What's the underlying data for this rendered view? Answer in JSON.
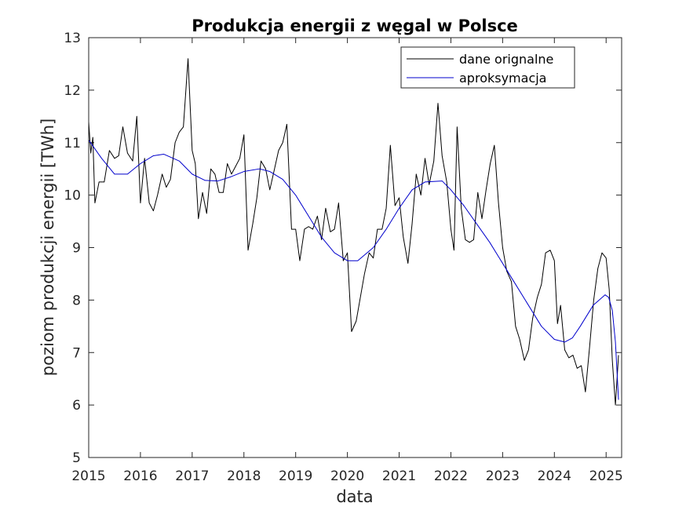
{
  "chart_data": {
    "type": "line",
    "title": "Produkcja energii z węgal w Polsce",
    "xlabel": "data",
    "ylabel": "poziom produkcji energii [TWh]",
    "xlim": [
      2015,
      2025.3
    ],
    "ylim": [
      5,
      13
    ],
    "xticks": [
      2015,
      2016,
      2017,
      2018,
      2019,
      2020,
      2021,
      2022,
      2023,
      2024,
      2025
    ],
    "yticks": [
      5,
      6,
      7,
      8,
      9,
      10,
      11,
      12,
      13
    ],
    "grid": false,
    "legend_position": "top-right",
    "series": [
      {
        "name": "dane orignalne",
        "color": "#000000",
        "x": [
          2015.0,
          2015.04,
          2015.08,
          2015.12,
          2015.2,
          2015.3,
          2015.4,
          2015.5,
          2015.58,
          2015.66,
          2015.75,
          2015.85,
          2015.93,
          2016.0,
          2016.08,
          2016.17,
          2016.25,
          2016.33,
          2016.42,
          2016.5,
          2016.58,
          2016.67,
          2016.75,
          2016.83,
          2016.92,
          2017.0,
          2017.06,
          2017.12,
          2017.2,
          2017.28,
          2017.36,
          2017.44,
          2017.52,
          2017.6,
          2017.68,
          2017.76,
          2017.84,
          2017.92,
          2018.0,
          2018.08,
          2018.17,
          2018.25,
          2018.33,
          2018.42,
          2018.5,
          2018.58,
          2018.67,
          2018.75,
          2018.83,
          2018.92,
          2019.0,
          2019.08,
          2019.17,
          2019.25,
          2019.33,
          2019.42,
          2019.5,
          2019.58,
          2019.67,
          2019.75,
          2019.83,
          2019.92,
          2020.0,
          2020.08,
          2020.17,
          2020.25,
          2020.33,
          2020.42,
          2020.5,
          2020.58,
          2020.67,
          2020.75,
          2020.83,
          2020.92,
          2021.0,
          2021.08,
          2021.17,
          2021.25,
          2021.33,
          2021.42,
          2021.5,
          2021.58,
          2021.67,
          2021.75,
          2021.83,
          2021.92,
          2022.0,
          2022.06,
          2022.12,
          2022.2,
          2022.28,
          2022.36,
          2022.44,
          2022.52,
          2022.6,
          2022.68,
          2022.76,
          2022.84,
          2022.92,
          2023.0,
          2023.08,
          2023.17,
          2023.25,
          2023.33,
          2023.42,
          2023.5,
          2023.58,
          2023.67,
          2023.75,
          2023.83,
          2023.92,
          2024.0,
          2024.06,
          2024.12,
          2024.2,
          2024.28,
          2024.36,
          2024.44,
          2024.52,
          2024.6,
          2024.68,
          2024.76,
          2024.84,
          2024.92,
          2025.0,
          2025.06,
          2025.12,
          2025.18,
          2025.24
        ],
        "y": [
          11.4,
          10.8,
          11.1,
          9.85,
          10.25,
          10.25,
          10.85,
          10.7,
          10.75,
          11.3,
          10.8,
          10.65,
          11.5,
          9.85,
          10.7,
          9.85,
          9.7,
          10.0,
          10.4,
          10.15,
          10.3,
          11.0,
          11.2,
          11.3,
          12.6,
          10.85,
          10.6,
          9.55,
          10.05,
          9.65,
          10.5,
          10.4,
          10.05,
          10.05,
          10.6,
          10.4,
          10.55,
          10.7,
          11.15,
          8.95,
          9.45,
          9.95,
          10.65,
          10.5,
          10.1,
          10.45,
          10.85,
          11.0,
          11.35,
          9.35,
          9.35,
          8.75,
          9.35,
          9.4,
          9.35,
          9.6,
          9.15,
          9.75,
          9.3,
          9.35,
          9.85,
          8.75,
          8.9,
          7.4,
          7.6,
          8.05,
          8.5,
          8.9,
          8.8,
          9.35,
          9.35,
          9.75,
          10.95,
          9.8,
          9.95,
          9.2,
          8.7,
          9.45,
          10.4,
          10.0,
          10.7,
          10.2,
          10.65,
          11.75,
          10.75,
          10.25,
          9.35,
          8.95,
          11.3,
          9.75,
          9.15,
          9.1,
          9.15,
          10.05,
          9.55,
          10.1,
          10.6,
          10.95,
          9.85,
          9.0,
          8.55,
          8.35,
          7.5,
          7.25,
          6.85,
          7.05,
          7.65,
          8.05,
          8.3,
          8.9,
          8.95,
          8.75,
          7.55,
          7.9,
          7.05,
          6.9,
          6.95,
          6.7,
          6.75,
          6.25,
          7.1,
          8.0,
          8.6,
          8.9,
          8.8,
          8.2,
          6.85,
          6.0,
          6.95
        ]
      },
      {
        "name": "aproksymacja",
        "color": "#0000cc",
        "x": [
          2015.0,
          2015.25,
          2015.5,
          2015.75,
          2016.0,
          2016.25,
          2016.45,
          2016.75,
          2017.0,
          2017.25,
          2017.5,
          2017.75,
          2018.0,
          2018.3,
          2018.5,
          2018.75,
          2019.0,
          2019.25,
          2019.5,
          2019.75,
          2020.0,
          2020.2,
          2020.5,
          2020.75,
          2021.0,
          2021.25,
          2021.5,
          2021.83,
          2022.0,
          2022.25,
          2022.5,
          2022.75,
          2023.0,
          2023.25,
          2023.5,
          2023.75,
          2024.0,
          2024.2,
          2024.35,
          2024.5,
          2024.75,
          2024.98,
          2025.05,
          2025.12,
          2025.18,
          2025.24
        ],
        "y": [
          11.05,
          10.7,
          10.4,
          10.4,
          10.6,
          10.75,
          10.78,
          10.65,
          10.4,
          10.28,
          10.27,
          10.35,
          10.45,
          10.5,
          10.45,
          10.3,
          10.0,
          9.6,
          9.2,
          8.9,
          8.75,
          8.75,
          9.0,
          9.35,
          9.75,
          10.1,
          10.25,
          10.27,
          10.1,
          9.8,
          9.45,
          9.1,
          8.7,
          8.3,
          7.9,
          7.5,
          7.25,
          7.2,
          7.28,
          7.5,
          7.9,
          8.1,
          8.05,
          7.8,
          7.2,
          6.1
        ]
      }
    ]
  }
}
